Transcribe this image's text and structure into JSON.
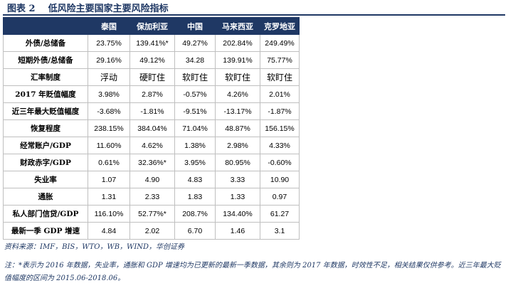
{
  "title": {
    "label": "图表 2",
    "text": "低风险主要国家主要风险指标"
  },
  "table": {
    "columns": [
      "",
      "泰国",
      "保加利亚",
      "中国",
      "马来西亚",
      "克罗地亚"
    ],
    "rows": [
      {
        "name": "外债/总储备",
        "values": [
          "23.75%",
          "139.41%*",
          "49.27%",
          "202.84%",
          "249.49%"
        ]
      },
      {
        "name": "短期外债/总储备",
        "values": [
          "29.16%",
          "49.12%",
          "34.28",
          "139.91%",
          "75.77%"
        ]
      },
      {
        "name": "汇率制度",
        "values": [
          "浮动",
          "硬盯住",
          "软盯住",
          "软盯住",
          "软盯住"
        ]
      },
      {
        "name": "2017 年贬值幅度",
        "values": [
          "3.98%",
          "2.87%",
          "-0.57%",
          "4.26%",
          "2.01%"
        ]
      },
      {
        "name": "近三年最大贬值幅度",
        "values": [
          "-3.68%",
          "-1.81%",
          "-9.51%",
          "-13.17%",
          "-1.87%"
        ]
      },
      {
        "name": "恢复程度",
        "values": [
          "238.15%",
          "384.04%",
          "71.04%",
          "48.87%",
          "156.15%"
        ]
      },
      {
        "name": "经常账户/GDP",
        "values": [
          "11.60%",
          "4.62%",
          "1.38%",
          "2.98%",
          "4.33%"
        ]
      },
      {
        "name": "财政赤字/GDP",
        "values": [
          "0.61%",
          "32.36%*",
          "3.95%",
          "80.95%",
          "-0.60%"
        ]
      },
      {
        "name": "失业率",
        "values": [
          "1.07",
          "4.90",
          "4.83",
          "3.33",
          "10.90"
        ]
      },
      {
        "name": "通胀",
        "values": [
          "1.31",
          "2.33",
          "1.83",
          "1.33",
          "0.97"
        ]
      },
      {
        "name": "私人部门信贷/GDP",
        "values": [
          "116.10%",
          "52.77%*",
          "208.7%",
          "134.40%",
          "61.27"
        ]
      },
      {
        "name": "最新一季 GDP 增速",
        "values": [
          "4.84",
          "2.02",
          "6.70",
          "1.46",
          "3.1"
        ]
      }
    ]
  },
  "source": "资料来源：IMF，BIS，WTO，WB，WIND，华创证券",
  "note": "注：*表示为 2016 年数据，失业率，通胀和 GDP 增速均为已更新的最新一季数据，其余则为 2017 年数据，时效性不足，相关结果仅供参考。近三年最大贬值幅度的区间为 2015.06-2018.06。",
  "colors": {
    "header_bg": "#1f3864",
    "header_text": "#ffffff",
    "accent_text": "#1f3864",
    "grid": "#bfbfbf"
  }
}
